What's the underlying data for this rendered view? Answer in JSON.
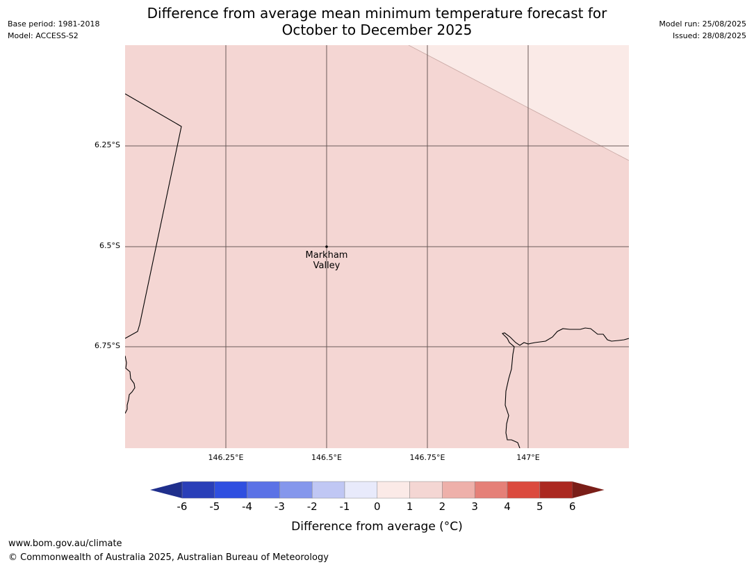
{
  "title_line1": "Difference from average mean minimum temperature forecast for",
  "title_line2": "October to December 2025",
  "meta_left": {
    "base_period": "Base period: 1981-2018",
    "model": "Model: ACCESS-S2"
  },
  "meta_right": {
    "model_run": "Model run: 25/08/2025",
    "issued": "Issued: 28/08/2025"
  },
  "axes": {
    "lat_labels": [
      "6.25°S",
      "6.5°S",
      "6.75°S"
    ],
    "lon_labels": [
      "146.25°E",
      "146.5°E",
      "146.75°E",
      "147°E"
    ]
  },
  "place": {
    "name_line1": "Markham",
    "name_line2": "Valley"
  },
  "fill_colors": {
    "main": "#f4d6d3",
    "upper_right": "#faeae7"
  },
  "colorbar": {
    "ticks": [
      "-6",
      "-5",
      "-4",
      "-3",
      "-2",
      "-1",
      "0",
      "1",
      "2",
      "3",
      "4",
      "5",
      "6"
    ],
    "colors": [
      "#1f2f8c",
      "#2a3fb8",
      "#2f4fe0",
      "#5b72e6",
      "#8597ec",
      "#c0c7f4",
      "#e8eafb",
      "#fbeae7",
      "#f4d6d3",
      "#eeb0aa",
      "#e58078",
      "#db4a3e",
      "#ab2820",
      "#7a1e18"
    ],
    "label": "Difference from average (°C)"
  },
  "footer": {
    "url": "www.bom.gov.au/climate",
    "copyright": "© Commonwealth of Australia 2025, Australian Bureau of Meteorology"
  }
}
